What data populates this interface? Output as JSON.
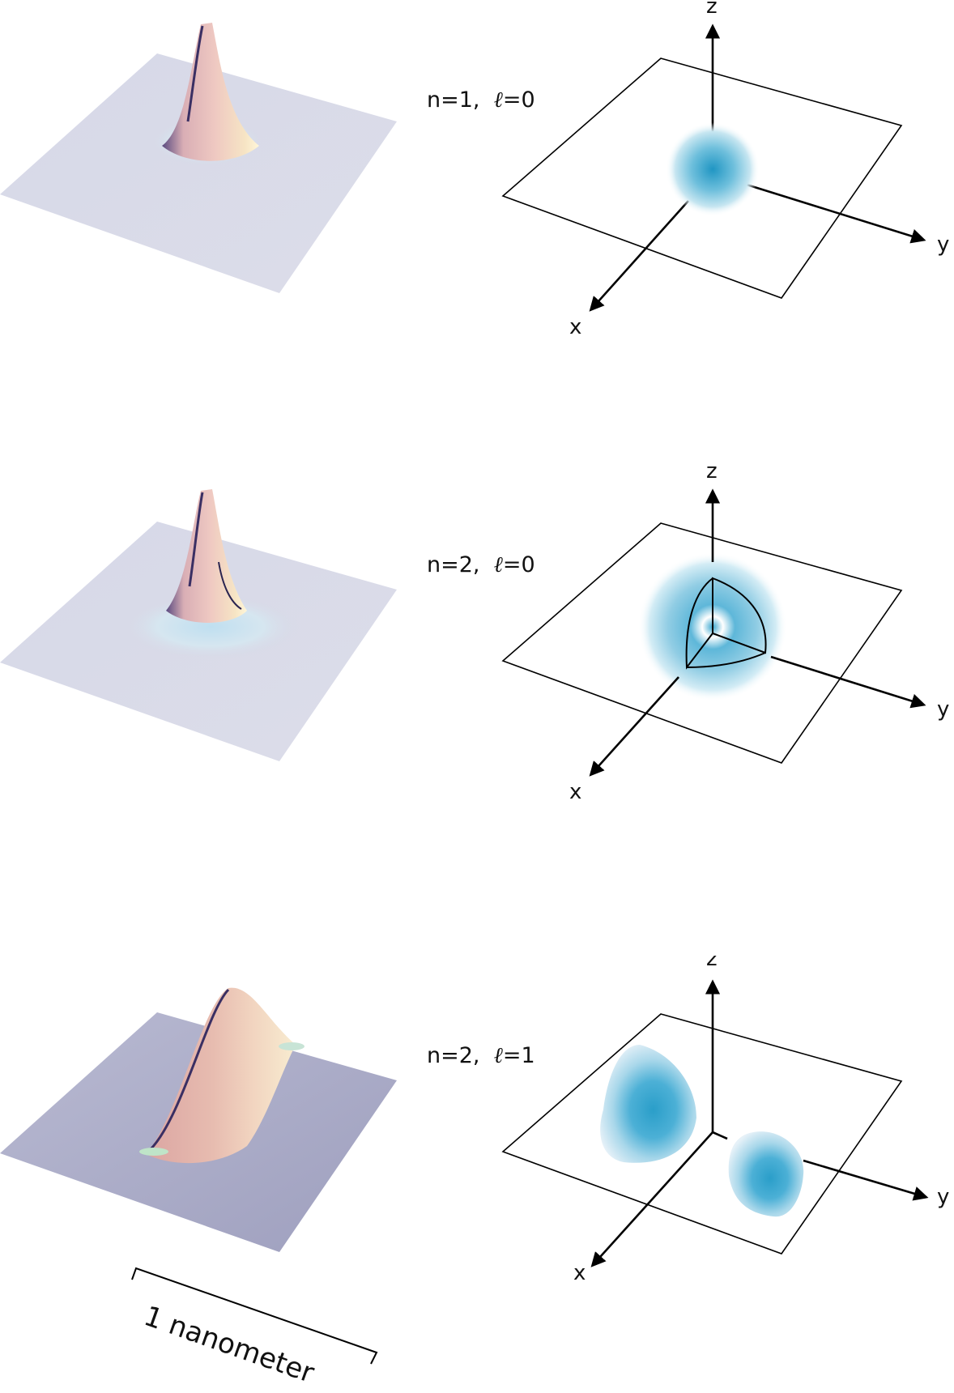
{
  "rows": [
    {
      "label_n": "n=1,",
      "label_l": "0",
      "axes": {
        "x": "x",
        "y": "y",
        "z": "z"
      }
    },
    {
      "label_n": "n=2,",
      "label_l": "0",
      "axes": {
        "x": "x",
        "y": "y",
        "z": "z"
      }
    },
    {
      "label_n": "n=2,",
      "label_l": "1",
      "axes": {
        "x": "x",
        "y": "y",
        "z": "z"
      }
    }
  ],
  "ell_symbol": "ℓ=",
  "scale_bar": {
    "label": "1 nanometer"
  },
  "colors": {
    "orbital": "#2b9ec9",
    "surface_base": "#d7d9e6",
    "peak": "#e8c8c2"
  }
}
